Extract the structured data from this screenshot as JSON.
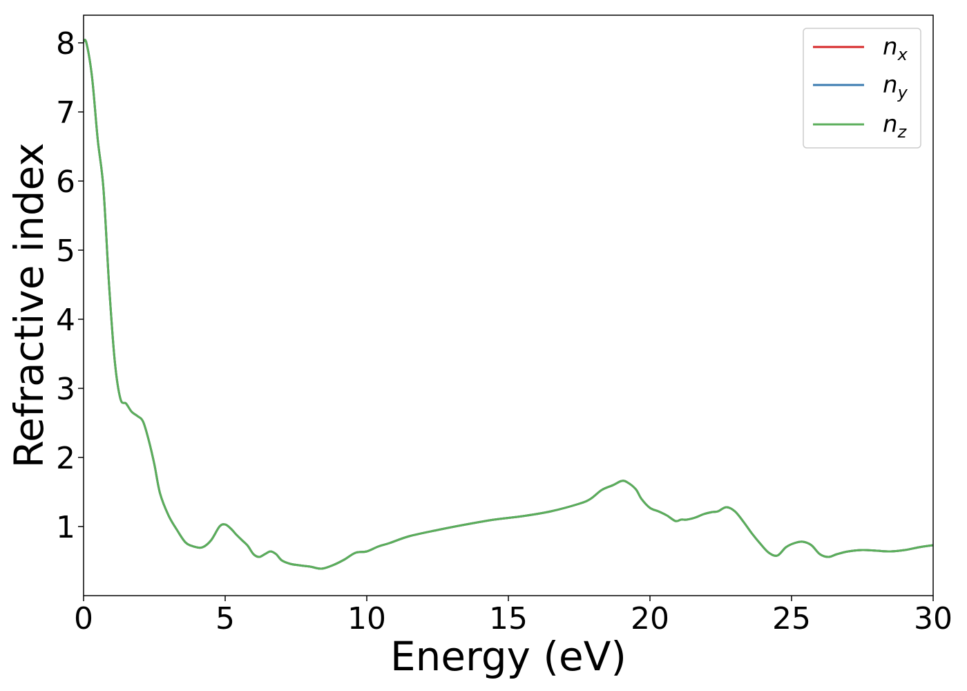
{
  "chart_data": {
    "type": "line",
    "xlabel": "Energy (eV)",
    "ylabel": "Refractive index",
    "xlim": [
      0,
      30
    ],
    "ylim": [
      0,
      8.4
    ],
    "xticks": [
      0,
      5,
      10,
      15,
      20,
      25,
      30
    ],
    "yticks": [
      1,
      2,
      3,
      4,
      5,
      6,
      7,
      8
    ],
    "legend_position": "top-right",
    "grid": false,
    "series": [
      {
        "name": "n",
        "subscript": "x",
        "color": "#d62728"
      },
      {
        "name": "n",
        "subscript": "y",
        "color": "#3a7bb0"
      },
      {
        "name": "n",
        "subscript": "z",
        "color": "#5aae5a"
      }
    ],
    "x": [
      0,
      0.1,
      0.3,
      0.5,
      0.7,
      0.9,
      1.1,
      1.3,
      1.5,
      1.7,
      1.9,
      2.1,
      2.3,
      2.5,
      2.7,
      3.0,
      3.3,
      3.6,
      3.9,
      4.2,
      4.5,
      4.8,
      5.0,
      5.2,
      5.4,
      5.6,
      5.8,
      6.0,
      6.2,
      6.4,
      6.6,
      6.8,
      7.0,
      7.3,
      7.6,
      8.0,
      8.4,
      8.8,
      9.2,
      9.6,
      10.0,
      10.4,
      10.8,
      11.5,
      12.5,
      13.5,
      14.5,
      15.5,
      16.5,
      17.5,
      17.9,
      18.3,
      18.7,
      19.0,
      19.2,
      19.5,
      19.7,
      20.0,
      20.3,
      20.6,
      20.9,
      21.1,
      21.3,
      21.6,
      21.9,
      22.2,
      22.4,
      22.7,
      23.0,
      23.3,
      23.6,
      23.9,
      24.2,
      24.5,
      24.8,
      25.1,
      25.4,
      25.7,
      26.0,
      26.3,
      26.6,
      27.0,
      27.5,
      28.0,
      28.5,
      29.0,
      29.5,
      30.0
    ],
    "values": [
      8.02,
      8.0,
      7.5,
      6.6,
      5.9,
      4.5,
      3.4,
      2.85,
      2.78,
      2.66,
      2.6,
      2.52,
      2.25,
      1.9,
      1.48,
      1.16,
      0.95,
      0.77,
      0.71,
      0.7,
      0.8,
      1.0,
      1.03,
      0.97,
      0.88,
      0.8,
      0.72,
      0.6,
      0.56,
      0.6,
      0.64,
      0.6,
      0.51,
      0.46,
      0.44,
      0.42,
      0.39,
      0.44,
      0.52,
      0.62,
      0.64,
      0.71,
      0.76,
      0.86,
      0.95,
      1.03,
      1.1,
      1.15,
      1.22,
      1.33,
      1.4,
      1.53,
      1.6,
      1.66,
      1.64,
      1.54,
      1.4,
      1.27,
      1.22,
      1.16,
      1.08,
      1.1,
      1.1,
      1.13,
      1.18,
      1.21,
      1.22,
      1.28,
      1.22,
      1.07,
      0.9,
      0.75,
      0.62,
      0.58,
      0.7,
      0.76,
      0.78,
      0.73,
      0.6,
      0.56,
      0.6,
      0.64,
      0.66,
      0.65,
      0.64,
      0.66,
      0.7,
      0.73
    ]
  }
}
